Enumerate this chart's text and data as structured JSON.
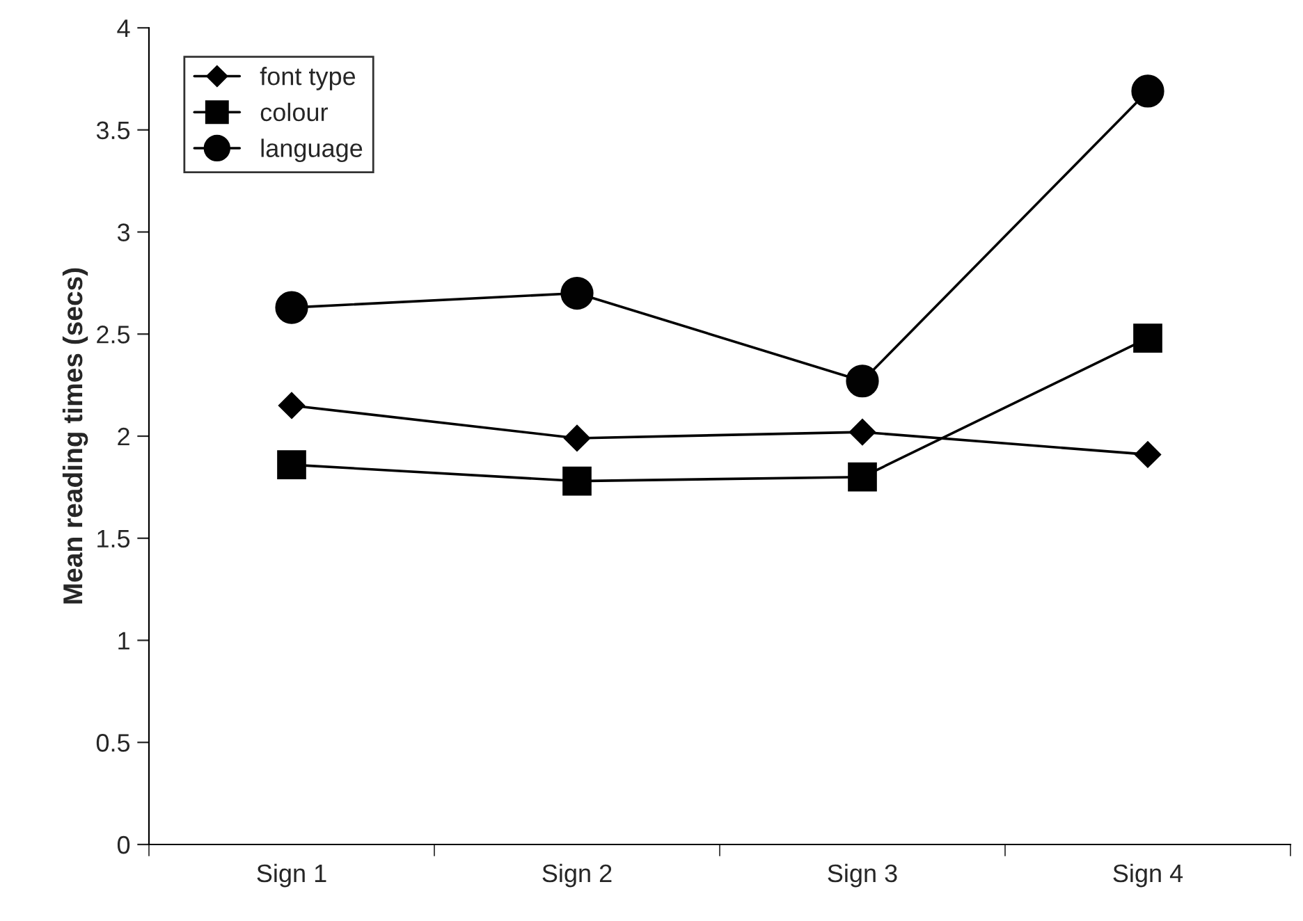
{
  "chart_data": {
    "type": "line",
    "ylabel": "Mean reading times (secs)",
    "categories": [
      "Sign 1",
      "Sign 2",
      "Sign 3",
      "Sign 4"
    ],
    "series": [
      {
        "name": "font type",
        "color": "#000000",
        "marker": "diamond",
        "values": [
          2.15,
          1.99,
          2.02,
          1.91
        ]
      },
      {
        "name": "colour",
        "color": "#010101",
        "marker": "square",
        "values": [
          1.86,
          1.78,
          1.8,
          2.48
        ]
      },
      {
        "name": "language",
        "color": "#020202",
        "marker": "circle",
        "values": [
          2.63,
          2.7,
          2.27,
          3.69
        ]
      }
    ],
    "ylim": [
      0,
      4
    ],
    "yticks": [
      0,
      0.5,
      1,
      1.5,
      2,
      2.5,
      3,
      3.5,
      4
    ],
    "grid": false,
    "legend": "top left",
    "line_style": "solid"
  }
}
